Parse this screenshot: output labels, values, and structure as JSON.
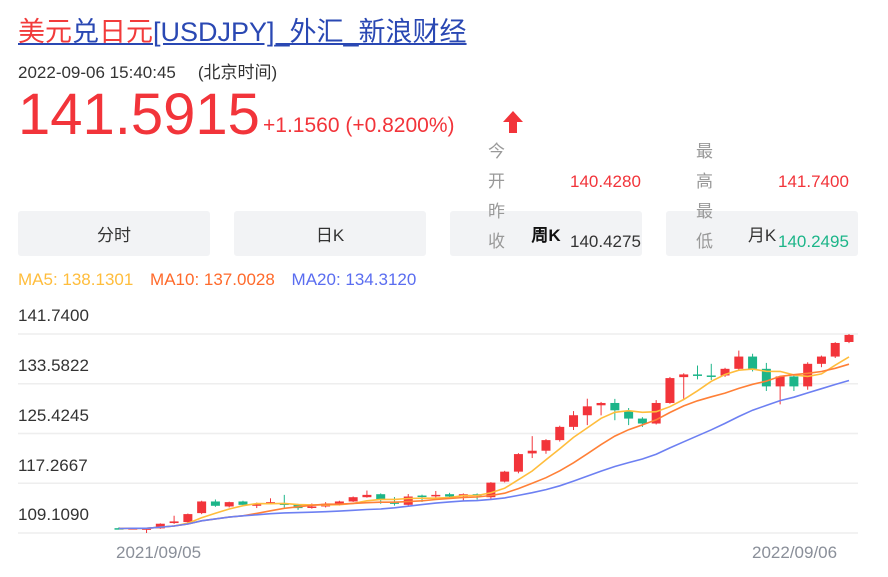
{
  "header": {
    "title_parts": [
      {
        "text": "美元",
        "color": "red"
      },
      {
        "text": "兑",
        "color": "blue"
      },
      {
        "text": "日元",
        "color": "red"
      },
      {
        "text": "[USDJPY]_外汇_新浪财经",
        "color": "blue"
      }
    ],
    "datetime": "2022-09-06 15:40:45",
    "timezone": "(北京时间)",
    "price": "141.5915",
    "change": "+1.1560 (+0.8200%)",
    "direction_icon": "arrow-up-icon"
  },
  "stats": {
    "open_label": "今开",
    "open": "140.4280",
    "high_label": "最高",
    "high": "141.7400",
    "prev_close_label": "昨收",
    "prev_close": "140.4275",
    "low_label": "最低",
    "low": "140.2495"
  },
  "tabs": [
    {
      "label": "分时"
    },
    {
      "label": "日K"
    },
    {
      "label": "周K",
      "selected": true
    },
    {
      "label": "月K"
    }
  ],
  "ma": {
    "ma5": "MA5: 138.1301",
    "ma10": "MA10: 137.0028",
    "ma20": "MA20: 134.3120"
  },
  "colors": {
    "up": "#f2343a",
    "down": "#1cb589",
    "ma5": "#ffbd3c",
    "ma10": "#ff8037",
    "ma20": "#6d80f2",
    "link": "#2a48b3"
  },
  "chart_data": {
    "type": "candlestick",
    "period": "weekly",
    "y_ticks": [
      "141.7400",
      "133.5822",
      "125.4245",
      "117.2667",
      "109.1090"
    ],
    "ylim": [
      109.109,
      141.74
    ],
    "x_labels": [
      "2021/09/05",
      "2022/09/06"
    ],
    "grid": true,
    "ohlc_order": [
      "open",
      "close",
      "low",
      "high"
    ],
    "candles": [
      [
        109.9,
        109.85,
        109.75,
        110.05
      ],
      [
        109.85,
        109.9,
        109.75,
        110.0
      ],
      [
        109.8,
        109.87,
        109.11,
        109.95
      ],
      [
        109.87,
        110.63,
        109.8,
        110.7
      ],
      [
        110.74,
        111.01,
        110.6,
        111.94
      ],
      [
        110.9,
        112.21,
        110.8,
        112.3
      ],
      [
        112.37,
        114.28,
        112.2,
        114.4
      ],
      [
        114.28,
        113.57,
        113.4,
        114.6
      ],
      [
        113.46,
        114.17,
        113.3,
        114.25
      ],
      [
        114.28,
        113.73,
        113.6,
        114.4
      ],
      [
        113.57,
        113.89,
        113.2,
        114.1
      ],
      [
        113.89,
        114.17,
        113.8,
        114.8
      ],
      [
        113.95,
        113.89,
        113.3,
        115.36
      ],
      [
        113.73,
        113.19,
        112.9,
        113.89
      ],
      [
        113.3,
        113.46,
        113.1,
        113.95
      ],
      [
        113.46,
        113.89,
        113.3,
        114.17
      ],
      [
        113.73,
        114.28,
        113.6,
        114.4
      ],
      [
        114.28,
        114.98,
        114.2,
        115.1
      ],
      [
        114.98,
        115.36,
        114.9,
        116.07
      ],
      [
        115.47,
        114.55,
        113.9,
        115.6
      ],
      [
        114.28,
        113.89,
        113.6,
        115.0
      ],
      [
        113.73,
        115.09,
        113.6,
        115.5
      ],
      [
        115.25,
        115.2,
        114.2,
        115.4
      ],
      [
        115.2,
        115.36,
        114.7,
        116.0
      ],
      [
        115.47,
        115.09,
        114.9,
        115.7
      ],
      [
        115.09,
        115.47,
        114.3,
        115.6
      ],
      [
        115.47,
        115.2,
        114.6,
        115.6
      ],
      [
        114.98,
        117.37,
        114.7,
        117.45
      ],
      [
        117.54,
        119.17,
        117.4,
        119.3
      ],
      [
        119.17,
        122.05,
        118.9,
        122.2
      ],
      [
        122.16,
        122.6,
        121.4,
        124.99
      ],
      [
        122.6,
        124.34,
        122.1,
        124.5
      ],
      [
        124.34,
        126.51,
        124.1,
        126.7
      ],
      [
        126.51,
        128.42,
        126.0,
        129.1
      ],
      [
        128.42,
        129.88,
        126.8,
        131.13
      ],
      [
        130.05,
        130.43,
        128.4,
        130.6
      ],
      [
        130.43,
        129.23,
        127.6,
        131.1
      ],
      [
        129.12,
        127.87,
        126.8,
        129.6
      ],
      [
        127.87,
        127.06,
        126.5,
        128.1
      ],
      [
        127.06,
        130.43,
        126.9,
        130.9
      ],
      [
        130.43,
        134.51,
        130.3,
        134.7
      ],
      [
        134.67,
        135.11,
        131.1,
        135.3
      ],
      [
        135.11,
        135.0,
        134.3,
        136.57
      ],
      [
        134.94,
        134.85,
        134.2,
        136.85
      ],
      [
        134.94,
        136.03,
        134.7,
        136.2
      ],
      [
        136.03,
        138.04,
        135.9,
        139.02
      ],
      [
        138.04,
        136.03,
        135.6,
        138.5
      ],
      [
        136.03,
        133.15,
        132.4,
        137.0
      ],
      [
        133.15,
        134.78,
        130.2,
        134.9
      ],
      [
        134.78,
        133.15,
        132.4,
        135.0
      ],
      [
        133.15,
        136.85,
        132.6,
        137.1
      ],
      [
        136.85,
        138.04,
        136.3,
        138.2
      ],
      [
        138.04,
        140.27,
        137.8,
        140.4
      ],
      [
        140.43,
        141.59,
        140.25,
        141.74
      ]
    ],
    "moving_averages": [
      {
        "name": "MA5",
        "period": 5
      },
      {
        "name": "MA10",
        "period": 10
      },
      {
        "name": "MA20",
        "period": 20
      }
    ]
  }
}
